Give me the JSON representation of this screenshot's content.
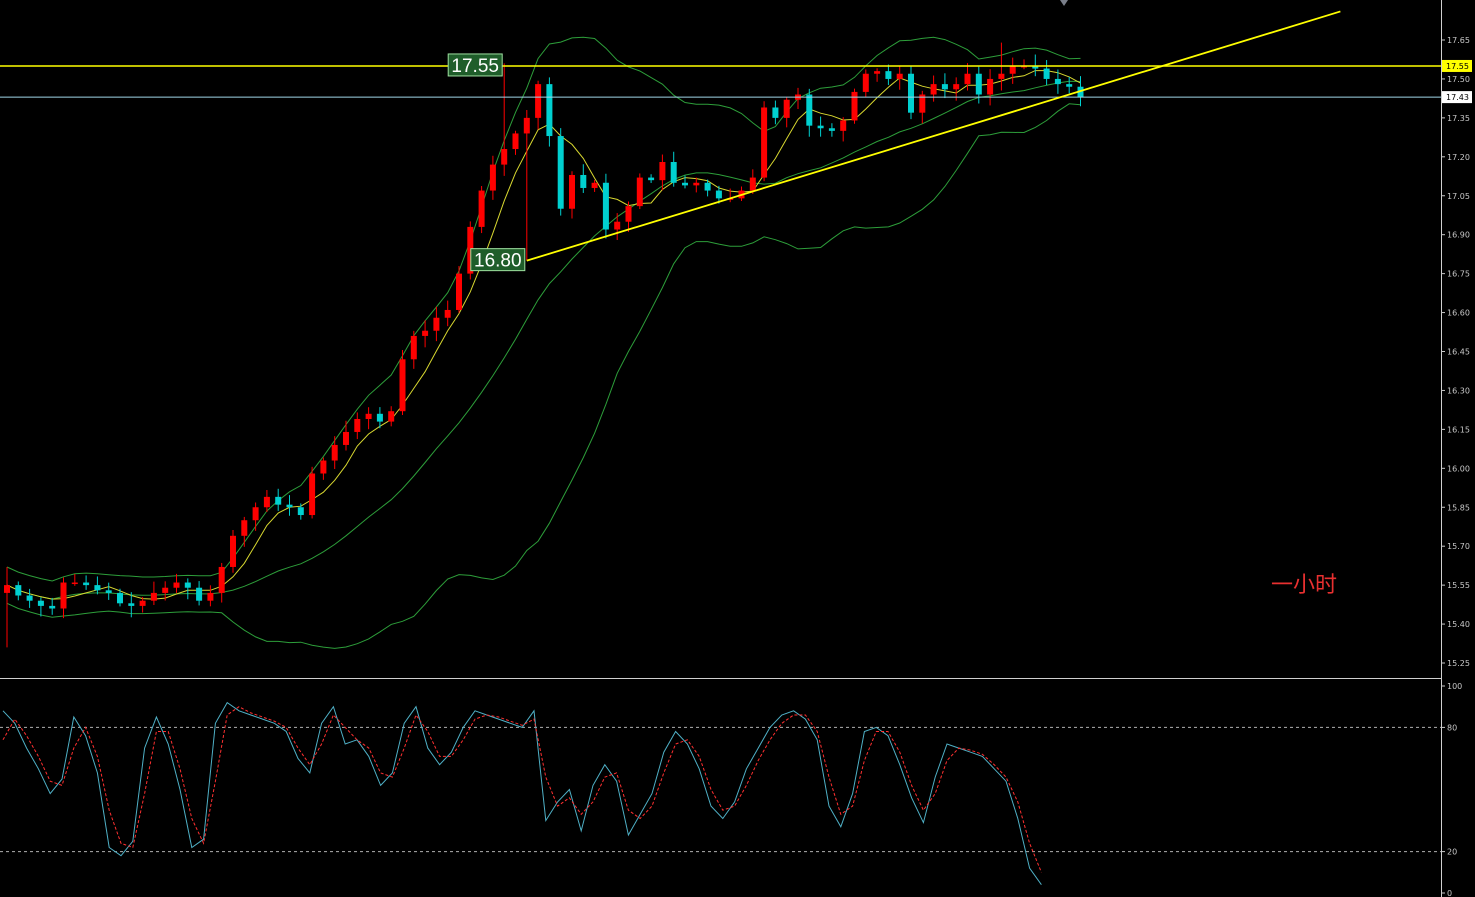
{
  "timeframe_label": "一小时",
  "chart_data": [
    {
      "type": "candlestick",
      "y_tick_labels": [
        "17.65",
        "17.50",
        "17.35",
        "17.20",
        "17.05",
        "16.90",
        "16.75",
        "16.60",
        "16.45",
        "16.30",
        "16.15",
        "16.00",
        "15.85",
        "15.70",
        "15.55",
        "15.40",
        "15.25"
      ],
      "ylim": [
        15.22,
        17.75
      ],
      "grid": false,
      "price_tags": [
        {
          "value": 17.55,
          "text": "17.55",
          "color": "#ffff00"
        },
        {
          "value": 17.43,
          "text": "17.43",
          "color": "#ffffff"
        }
      ],
      "price_labels": [
        {
          "text": "17.55",
          "value": 17.55,
          "anchor_bar": 44
        },
        {
          "text": "16.80",
          "value": 16.8,
          "anchor_bar": 46
        }
      ],
      "horizontal_lines": [
        {
          "value": 17.55,
          "color": "#ffff00",
          "style": "solid"
        },
        {
          "value": 17.43,
          "color": "#9fd7e8",
          "style": "solid"
        }
      ],
      "trendline": {
        "from": {
          "bar": 46,
          "value": 16.8
        },
        "to": {
          "bar": 118,
          "value": 17.76
        },
        "color": "#ffff00"
      },
      "colors": {
        "up": "#ff0000",
        "down": "#00d0d0",
        "bands": "#2d9e3a",
        "ma": "#d8d830"
      },
      "closes": [
        15.55,
        15.51,
        15.49,
        15.47,
        15.46,
        15.56,
        15.56,
        15.55,
        15.53,
        15.52,
        15.48,
        15.47,
        15.49,
        15.52,
        15.54,
        15.56,
        15.54,
        15.49,
        15.52,
        15.62,
        15.74,
        15.8,
        15.85,
        15.89,
        15.86,
        15.85,
        15.82,
        15.98,
        16.03,
        16.09,
        16.14,
        16.19,
        16.21,
        16.18,
        16.22,
        16.42,
        16.51,
        16.53,
        16.58,
        16.61,
        16.75,
        16.93,
        17.07,
        17.17,
        17.23,
        17.29,
        17.35,
        17.48,
        17.28,
        17.0,
        17.13,
        17.08,
        17.1,
        16.92,
        16.95,
        17.01,
        17.12,
        17.11,
        17.18,
        17.1,
        17.09,
        17.1,
        17.07,
        17.04,
        17.04,
        17.07,
        17.12,
        17.39,
        17.35,
        17.42,
        17.44,
        17.32,
        17.31,
        17.3,
        17.34,
        17.45,
        17.52,
        17.53,
        17.5,
        17.52,
        17.37,
        17.44,
        17.48,
        17.46,
        17.48,
        17.52,
        17.44,
        17.5,
        17.52,
        17.55,
        17.55,
        17.54,
        17.5,
        17.48,
        17.47,
        17.43
      ]
    },
    {
      "type": "line",
      "y_tick_labels": [
        "100",
        "80",
        "20",
        "0"
      ],
      "ylim": [
        0,
        100
      ],
      "reference_lines": [
        80,
        20
      ],
      "series": [
        {
          "color": "#4fb0c6",
          "style": "solid",
          "values": [
            88,
            82,
            70,
            60,
            48,
            55,
            85,
            76,
            58,
            22,
            18,
            25,
            70,
            85,
            72,
            50,
            22,
            26,
            82,
            92,
            88,
            86,
            84,
            82,
            78,
            65,
            58,
            82,
            90,
            72,
            74,
            66,
            52,
            58,
            82,
            90,
            70,
            62,
            68,
            80,
            88,
            86,
            84,
            82,
            80,
            88,
            35,
            44,
            50,
            30,
            52,
            62,
            54,
            28,
            38,
            48,
            68,
            78,
            72,
            60,
            42,
            36,
            44,
            60,
            70,
            80,
            86,
            88,
            84,
            74,
            42,
            32,
            48,
            78,
            80,
            76,
            62,
            46,
            34,
            56,
            72,
            70,
            68,
            66,
            60,
            54,
            36,
            12,
            4
          ]
        },
        {
          "color": "#ff3030",
          "style": "dashed",
          "values": [
            74,
            84,
            76,
            66,
            54,
            52,
            70,
            80,
            66,
            40,
            24,
            22,
            48,
            78,
            78,
            60,
            36,
            24,
            54,
            86,
            90,
            87,
            85,
            83,
            80,
            70,
            62,
            72,
            86,
            80,
            74,
            70,
            58,
            56,
            70,
            86,
            78,
            66,
            66,
            74,
            84,
            86,
            85,
            83,
            81,
            84,
            56,
            42,
            46,
            38,
            44,
            56,
            58,
            40,
            36,
            42,
            58,
            72,
            74,
            66,
            50,
            40,
            42,
            52,
            64,
            74,
            82,
            86,
            86,
            78,
            56,
            38,
            42,
            64,
            78,
            78,
            68,
            52,
            40,
            48,
            64,
            70,
            69,
            67,
            62,
            56,
            44,
            24,
            10
          ]
        }
      ]
    }
  ]
}
